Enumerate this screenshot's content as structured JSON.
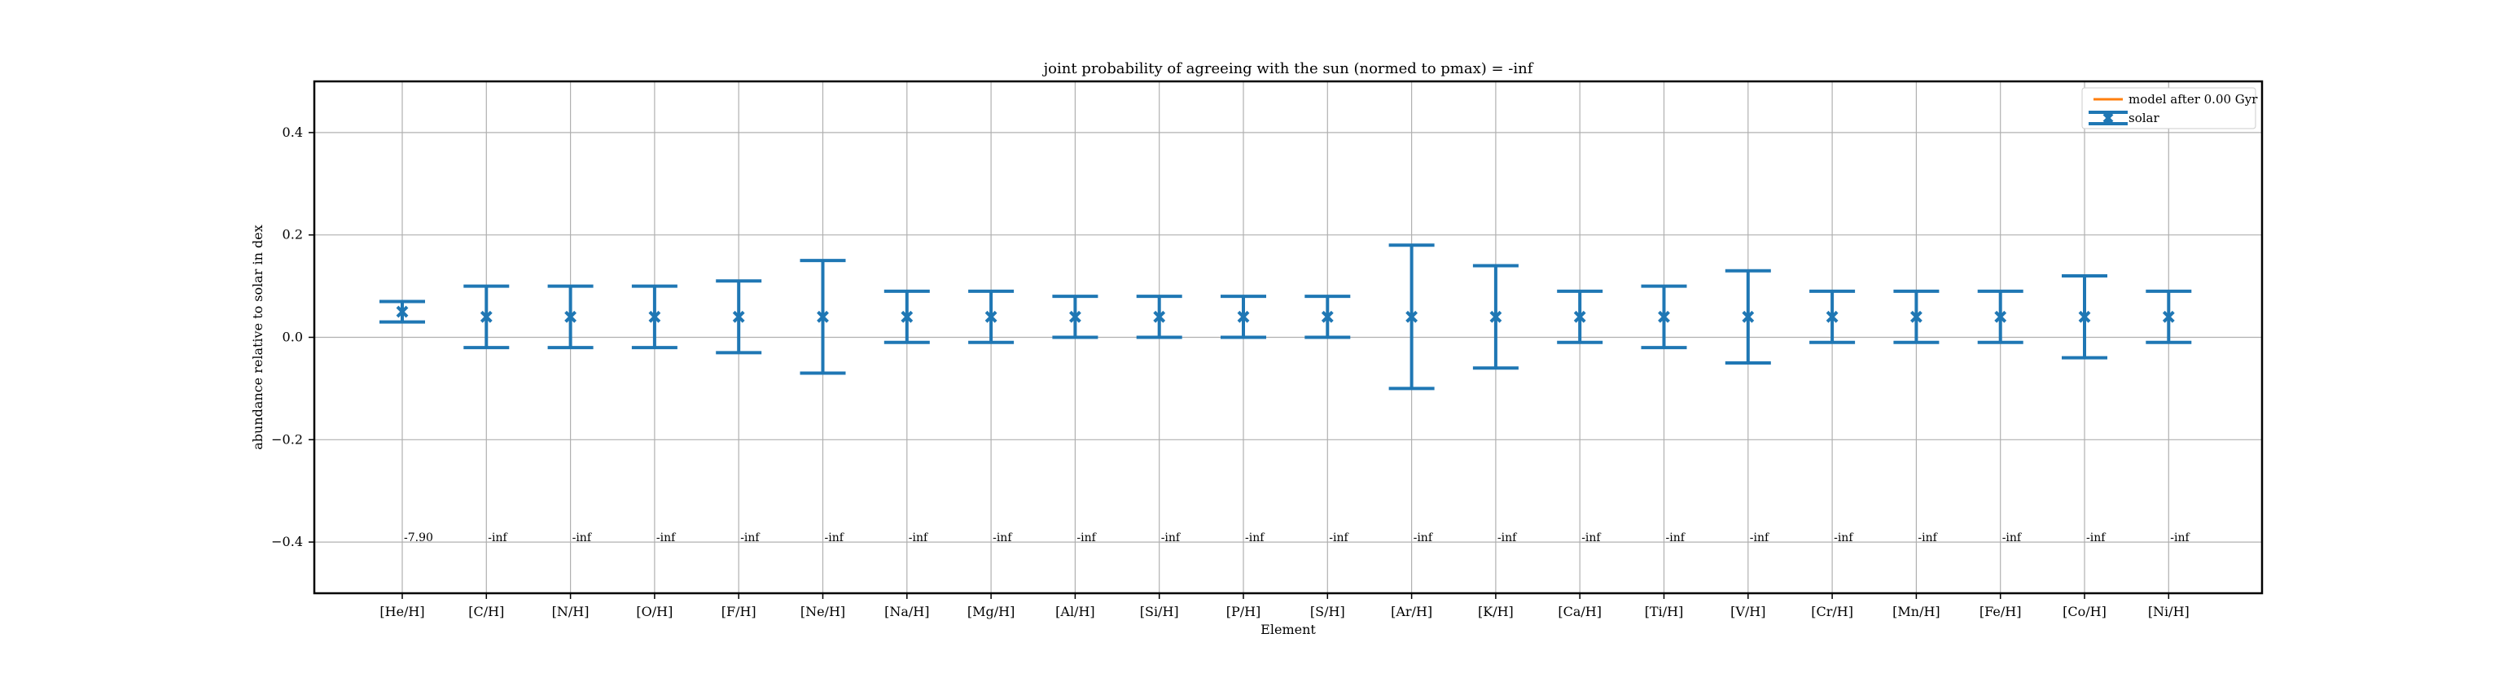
{
  "chart_data": {
    "type": "errorbar",
    "title": "joint probability of agreeing with the sun (normed to pmax) = -inf",
    "xlabel": "Element",
    "ylabel": "abundance relative to solar in dex",
    "ylim": [
      -0.5,
      0.5
    ],
    "yticks": [
      "0.4",
      "0.2",
      "0.0",
      "−0.2",
      "−0.4"
    ],
    "ytick_values": [
      0.4,
      0.2,
      0.0,
      -0.2,
      -0.4
    ],
    "grid": true,
    "legend_position": "top-right",
    "legend": [
      {
        "label": "model after 0.00 Gyr",
        "color": "#ff7f0e",
        "kind": "line"
      },
      {
        "label": "solar",
        "color": "#1f77b4",
        "kind": "errorbar"
      }
    ],
    "categories": [
      "[He/H]",
      "[C/H]",
      "[N/H]",
      "[O/H]",
      "[F/H]",
      "[Ne/H]",
      "[Na/H]",
      "[Mg/H]",
      "[Al/H]",
      "[Si/H]",
      "[P/H]",
      "[S/H]",
      "[Ar/H]",
      "[K/H]",
      "[Ca/H]",
      "[Ti/H]",
      "[V/H]",
      "[Cr/H]",
      "[Mn/H]",
      "[Fe/H]",
      "[Co/H]",
      "[Ni/H]"
    ],
    "series": [
      {
        "name": "solar",
        "color": "#1f77b4",
        "values": [
          0.05,
          0.04,
          0.04,
          0.04,
          0.04,
          0.04,
          0.04,
          0.04,
          0.04,
          0.04,
          0.04,
          0.04,
          0.04,
          0.04,
          0.04,
          0.04,
          0.04,
          0.04,
          0.04,
          0.04,
          0.04,
          0.04
        ],
        "err_low": [
          0.03,
          -0.02,
          -0.02,
          -0.02,
          -0.03,
          -0.07,
          -0.01,
          -0.01,
          0.0,
          0.0,
          0.0,
          0.0,
          -0.1,
          -0.06,
          -0.01,
          -0.02,
          -0.05,
          -0.01,
          -0.01,
          -0.01,
          -0.04,
          -0.01
        ],
        "err_high": [
          0.07,
          0.1,
          0.1,
          0.1,
          0.11,
          0.15,
          0.09,
          0.09,
          0.08,
          0.08,
          0.08,
          0.08,
          0.18,
          0.14,
          0.09,
          0.1,
          0.13,
          0.09,
          0.09,
          0.09,
          0.12,
          0.09
        ]
      }
    ],
    "annotations": [
      "-7.90",
      "-inf",
      "-inf",
      "-inf",
      "-inf",
      "-inf",
      "-inf",
      "-inf",
      "-inf",
      "-inf",
      "-inf",
      "-inf",
      "-inf",
      "-inf",
      "-inf",
      "-inf",
      "-inf",
      "-inf",
      "-inf",
      "-inf",
      "-inf",
      "-inf"
    ],
    "annotation_y": -0.4
  }
}
